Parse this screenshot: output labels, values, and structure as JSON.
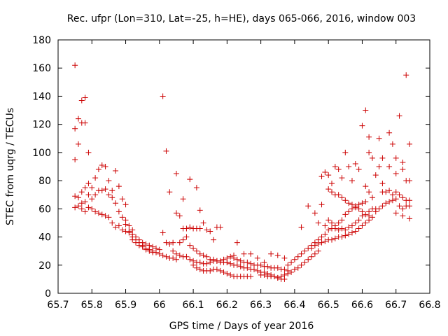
{
  "chart_data": {
    "type": "scatter",
    "title": "Rec. ufpr (Lon=310, Lat=-25, h=HE), days 065-066, 2016, window 003",
    "xlabel": "GPS time / Days of year 2016",
    "ylabel": "STEC from uqrg / TECUs",
    "xlim": [
      65.7,
      66.8
    ],
    "ylim": [
      0,
      180
    ],
    "xticks": [
      "65.7",
      "65.8",
      "65.9",
      "66",
      "66.1",
      "66.2",
      "66.3",
      "66.4",
      "66.5",
      "66.6",
      "66.7",
      "66.8"
    ],
    "yticks": [
      "0",
      "20",
      "40",
      "60",
      "80",
      "100",
      "120",
      "140",
      "160",
      "180"
    ],
    "marker": "+",
    "color": "#cc0000",
    "grid": false,
    "series_note": "multiple satellite arcs; points estimated from figure",
    "points": [
      [
        65.75,
        162
      ],
      [
        65.75,
        117
      ],
      [
        65.75,
        95
      ],
      [
        65.76,
        124
      ],
      [
        65.76,
        106
      ],
      [
        65.77,
        137
      ],
      [
        65.77,
        121
      ],
      [
        65.78,
        139
      ],
      [
        65.78,
        121
      ],
      [
        65.79,
        100
      ],
      [
        65.75,
        69
      ],
      [
        65.76,
        68
      ],
      [
        65.77,
        72
      ],
      [
        65.78,
        75
      ],
      [
        65.79,
        78
      ],
      [
        65.8,
        75
      ],
      [
        65.81,
        82
      ],
      [
        65.82,
        88
      ],
      [
        65.83,
        91
      ],
      [
        65.84,
        90
      ],
      [
        65.85,
        80
      ],
      [
        65.86,
        73
      ],
      [
        65.87,
        87
      ],
      [
        65.88,
        76
      ],
      [
        65.89,
        67
      ],
      [
        65.9,
        63
      ],
      [
        65.75,
        61
      ],
      [
        65.76,
        62
      ],
      [
        65.77,
        64
      ],
      [
        65.78,
        65
      ],
      [
        65.79,
        70
      ],
      [
        65.8,
        67
      ],
      [
        65.81,
        70
      ],
      [
        65.82,
        73
      ],
      [
        65.83,
        73
      ],
      [
        65.84,
        74
      ],
      [
        65.85,
        70
      ],
      [
        65.86,
        68
      ],
      [
        65.87,
        64
      ],
      [
        65.88,
        58
      ],
      [
        65.89,
        54
      ],
      [
        65.9,
        52
      ],
      [
        65.91,
        48
      ],
      [
        65.92,
        45
      ],
      [
        65.77,
        60
      ],
      [
        65.78,
        58
      ],
      [
        65.79,
        61
      ],
      [
        65.8,
        60
      ],
      [
        65.81,
        58
      ],
      [
        65.82,
        57
      ],
      [
        65.83,
        56
      ],
      [
        65.84,
        55
      ],
      [
        65.85,
        54
      ],
      [
        65.86,
        50
      ],
      [
        65.87,
        47
      ],
      [
        65.88,
        48
      ],
      [
        65.89,
        45
      ],
      [
        65.9,
        44
      ],
      [
        65.91,
        43
      ],
      [
        65.92,
        42
      ],
      [
        65.93,
        40
      ],
      [
        65.94,
        38
      ],
      [
        65.95,
        36
      ],
      [
        65.96,
        35
      ],
      [
        65.97,
        34
      ],
      [
        65.98,
        33
      ],
      [
        65.99,
        32
      ],
      [
        66.0,
        31
      ],
      [
        65.9,
        49
      ],
      [
        65.91,
        44
      ],
      [
        65.92,
        40
      ],
      [
        65.93,
        38
      ],
      [
        65.94,
        36
      ],
      [
        65.95,
        34
      ],
      [
        65.96,
        32
      ],
      [
        65.97,
        31
      ],
      [
        65.98,
        30
      ],
      [
        65.99,
        29
      ],
      [
        66.0,
        28
      ],
      [
        66.01,
        27
      ],
      [
        66.02,
        26
      ],
      [
        66.03,
        25
      ],
      [
        66.04,
        25
      ],
      [
        66.05,
        24
      ],
      [
        65.92,
        38
      ],
      [
        65.93,
        36
      ],
      [
        65.94,
        34
      ],
      [
        65.95,
        33
      ],
      [
        65.96,
        31
      ],
      [
        65.97,
        30
      ],
      [
        65.98,
        29
      ],
      [
        66.01,
        140
      ],
      [
        66.02,
        101
      ],
      [
        66.03,
        72
      ],
      [
        66.05,
        85
      ],
      [
        66.07,
        67
      ],
      [
        66.09,
        81
      ],
      [
        66.11,
        75
      ],
      [
        66.12,
        59
      ],
      [
        66.01,
        43
      ],
      [
        66.02,
        36
      ],
      [
        66.03,
        35
      ],
      [
        66.04,
        36
      ],
      [
        66.05,
        57
      ],
      [
        66.06,
        55
      ],
      [
        66.07,
        46
      ],
      [
        66.08,
        46
      ],
      [
        66.09,
        47
      ],
      [
        66.1,
        46
      ],
      [
        66.11,
        46
      ],
      [
        66.12,
        46
      ],
      [
        66.13,
        50
      ],
      [
        66.14,
        45
      ],
      [
        66.15,
        44
      ],
      [
        66.16,
        38
      ],
      [
        66.17,
        47
      ],
      [
        66.18,
        47
      ],
      [
        66.04,
        30
      ],
      [
        66.05,
        28
      ],
      [
        66.06,
        27
      ],
      [
        66.07,
        26
      ],
      [
        66.08,
        26
      ],
      [
        66.09,
        24
      ],
      [
        66.1,
        23
      ],
      [
        66.11,
        22
      ],
      [
        66.12,
        22
      ],
      [
        66.13,
        21
      ],
      [
        66.14,
        21
      ],
      [
        66.15,
        22
      ],
      [
        66.16,
        23
      ],
      [
        66.17,
        23
      ],
      [
        66.18,
        22
      ],
      [
        66.19,
        22
      ],
      [
        66.2,
        22
      ],
      [
        66.06,
        36
      ],
      [
        66.07,
        38
      ],
      [
        66.08,
        40
      ],
      [
        66.09,
        34
      ],
      [
        66.1,
        32
      ],
      [
        66.11,
        30
      ],
      [
        66.12,
        28
      ],
      [
        66.13,
        27
      ],
      [
        66.14,
        26
      ],
      [
        66.15,
        24
      ],
      [
        66.16,
        24
      ],
      [
        66.17,
        23
      ],
      [
        66.18,
        23
      ],
      [
        66.19,
        24
      ],
      [
        66.2,
        25
      ],
      [
        66.21,
        26
      ],
      [
        66.22,
        27
      ],
      [
        66.1,
        20
      ],
      [
        66.11,
        18
      ],
      [
        66.12,
        17
      ],
      [
        66.13,
        16
      ],
      [
        66.14,
        16
      ],
      [
        66.15,
        16
      ],
      [
        66.16,
        17
      ],
      [
        66.17,
        17
      ],
      [
        66.18,
        16
      ],
      [
        66.19,
        15
      ],
      [
        66.2,
        14
      ],
      [
        66.21,
        13
      ],
      [
        66.22,
        12
      ],
      [
        66.23,
        12
      ],
      [
        66.24,
        12
      ],
      [
        66.25,
        12
      ],
      [
        66.26,
        12
      ],
      [
        66.27,
        12
      ],
      [
        66.2,
        22
      ],
      [
        66.21,
        21
      ],
      [
        66.22,
        20
      ],
      [
        66.23,
        20
      ],
      [
        66.24,
        19
      ],
      [
        66.25,
        18
      ],
      [
        66.26,
        18
      ],
      [
        66.27,
        17
      ],
      [
        66.28,
        17
      ],
      [
        66.29,
        16
      ],
      [
        66.3,
        15
      ],
      [
        66.31,
        15
      ],
      [
        66.32,
        14
      ],
      [
        66.33,
        13
      ],
      [
        66.34,
        12
      ],
      [
        66.35,
        11
      ],
      [
        66.36,
        10
      ],
      [
        66.37,
        10
      ],
      [
        66.23,
        36
      ],
      [
        66.25,
        28
      ],
      [
        66.27,
        28
      ],
      [
        66.29,
        25
      ],
      [
        66.31,
        22
      ],
      [
        66.33,
        28
      ],
      [
        66.35,
        27
      ],
      [
        66.37,
        25
      ],
      [
        66.22,
        25
      ],
      [
        66.23,
        24
      ],
      [
        66.24,
        23
      ],
      [
        66.25,
        22
      ],
      [
        66.26,
        22
      ],
      [
        66.27,
        21
      ],
      [
        66.28,
        20
      ],
      [
        66.29,
        20
      ],
      [
        66.3,
        20
      ],
      [
        66.31,
        19
      ],
      [
        66.32,
        19
      ],
      [
        66.33,
        18
      ],
      [
        66.34,
        18
      ],
      [
        66.35,
        18
      ],
      [
        66.36,
        17
      ],
      [
        66.37,
        17
      ],
      [
        66.38,
        16
      ],
      [
        66.3,
        13
      ],
      [
        66.31,
        13
      ],
      [
        66.32,
        12
      ],
      [
        66.33,
        12
      ],
      [
        66.34,
        12
      ],
      [
        66.35,
        11
      ],
      [
        66.36,
        12
      ],
      [
        66.37,
        13
      ],
      [
        66.38,
        14
      ],
      [
        66.39,
        15
      ],
      [
        66.4,
        17
      ],
      [
        66.41,
        18
      ],
      [
        66.42,
        20
      ],
      [
        66.43,
        22
      ],
      [
        66.44,
        24
      ],
      [
        66.45,
        26
      ],
      [
        66.46,
        28
      ],
      [
        66.47,
        30
      ],
      [
        66.38,
        20
      ],
      [
        66.39,
        22
      ],
      [
        66.4,
        24
      ],
      [
        66.41,
        26
      ],
      [
        66.42,
        28
      ],
      [
        66.43,
        30
      ],
      [
        66.44,
        32
      ],
      [
        66.45,
        34
      ],
      [
        66.46,
        36
      ],
      [
        66.47,
        38
      ],
      [
        66.48,
        40
      ],
      [
        66.49,
        42
      ],
      [
        66.5,
        45
      ],
      [
        66.51,
        46
      ],
      [
        66.52,
        46
      ],
      [
        66.53,
        45
      ],
      [
        66.54,
        46
      ],
      [
        66.55,
        45
      ],
      [
        66.56,
        47
      ],
      [
        66.57,
        48
      ],
      [
        66.58,
        50
      ],
      [
        66.59,
        52
      ],
      [
        66.6,
        55
      ],
      [
        66.61,
        56
      ],
      [
        66.62,
        58
      ],
      [
        66.63,
        60
      ],
      [
        66.64,
        60
      ],
      [
        66.42,
        47
      ],
      [
        66.44,
        62
      ],
      [
        66.46,
        57
      ],
      [
        66.48,
        63
      ],
      [
        66.47,
        50
      ],
      [
        66.49,
        48
      ],
      [
        66.5,
        52
      ],
      [
        66.51,
        50
      ],
      [
        66.52,
        48
      ],
      [
        66.53,
        50
      ],
      [
        66.54,
        52
      ],
      [
        66.55,
        56
      ],
      [
        66.56,
        58
      ],
      [
        66.57,
        60
      ],
      [
        66.58,
        62
      ],
      [
        66.59,
        63
      ],
      [
        66.6,
        64
      ],
      [
        66.61,
        65
      ],
      [
        66.45,
        32
      ],
      [
        66.46,
        34
      ],
      [
        66.47,
        35
      ],
      [
        66.48,
        36
      ],
      [
        66.49,
        37
      ],
      [
        66.5,
        38
      ],
      [
        66.51,
        38
      ],
      [
        66.52,
        39
      ],
      [
        66.53,
        40
      ],
      [
        66.54,
        40
      ],
      [
        66.55,
        41
      ],
      [
        66.56,
        42
      ],
      [
        66.57,
        43
      ],
      [
        66.58,
        44
      ],
      [
        66.59,
        46
      ],
      [
        66.6,
        48
      ],
      [
        66.61,
        50
      ],
      [
        66.62,
        52
      ],
      [
        66.48,
        83
      ],
      [
        66.49,
        86
      ],
      [
        66.5,
        84
      ],
      [
        66.51,
        78
      ],
      [
        66.52,
        90
      ],
      [
        66.53,
        88
      ],
      [
        66.54,
        82
      ],
      [
        66.55,
        100
      ],
      [
        66.56,
        90
      ],
      [
        66.57,
        80
      ],
      [
        66.58,
        92
      ],
      [
        66.59,
        88
      ],
      [
        66.6,
        119
      ],
      [
        66.61,
        130
      ],
      [
        66.62,
        111
      ],
      [
        66.62,
        100
      ],
      [
        66.63,
        96
      ],
      [
        66.5,
        74
      ],
      [
        66.51,
        72
      ],
      [
        66.52,
        70
      ],
      [
        66.53,
        70
      ],
      [
        66.54,
        68
      ],
      [
        66.55,
        66
      ],
      [
        66.56,
        64
      ],
      [
        66.57,
        63
      ],
      [
        66.58,
        61
      ],
      [
        66.59,
        60
      ],
      [
        66.6,
        58
      ],
      [
        66.61,
        76
      ],
      [
        66.62,
        72
      ],
      [
        66.63,
        68
      ],
      [
        66.64,
        84
      ],
      [
        66.65,
        90
      ],
      [
        66.66,
        78
      ],
      [
        66.62,
        55
      ],
      [
        66.63,
        54
      ],
      [
        66.64,
        58
      ],
      [
        66.65,
        60
      ],
      [
        66.66,
        62
      ],
      [
        66.67,
        64
      ],
      [
        66.68,
        65
      ],
      [
        66.69,
        66
      ],
      [
        66.7,
        67
      ],
      [
        66.71,
        62
      ],
      [
        66.72,
        60
      ],
      [
        66.73,
        62
      ],
      [
        66.74,
        62
      ],
      [
        66.65,
        110
      ],
      [
        66.66,
        96
      ],
      [
        66.68,
        114
      ],
      [
        66.69,
        106
      ],
      [
        66.7,
        96
      ],
      [
        66.71,
        126
      ],
      [
        66.72,
        93
      ],
      [
        66.73,
        155
      ],
      [
        66.74,
        106
      ],
      [
        66.66,
        72
      ],
      [
        66.67,
        72
      ],
      [
        66.68,
        73
      ],
      [
        66.69,
        70
      ],
      [
        66.7,
        72
      ],
      [
        66.71,
        70
      ],
      [
        66.72,
        68
      ],
      [
        66.73,
        66
      ],
      [
        66.74,
        66
      ],
      [
        66.68,
        90
      ],
      [
        66.7,
        85
      ],
      [
        66.72,
        88
      ],
      [
        66.73,
        80
      ],
      [
        66.74,
        80
      ],
      [
        66.7,
        57
      ],
      [
        66.72,
        55
      ],
      [
        66.74,
        53
      ]
    ]
  }
}
